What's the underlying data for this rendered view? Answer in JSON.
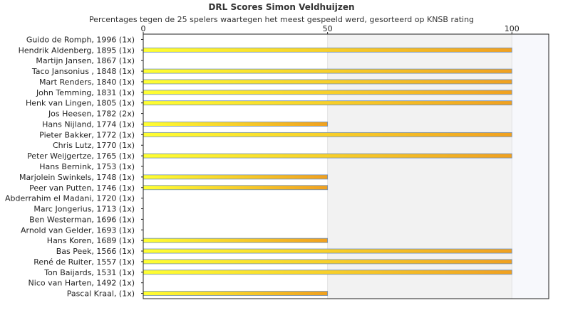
{
  "chart_data": {
    "type": "bar",
    "orientation": "horizontal",
    "title": "DRL Scores Simon Veldhuijzen",
    "subtitle": "Percentages tegen de 25 spelers waartegen het meest gespeeld werd, gesorteerd op KNSB rating",
    "xlim": [
      0,
      110
    ],
    "xticks": [
      0,
      50,
      100
    ],
    "legend": "none",
    "grid": "vertical bands at 50 and 100",
    "categories": [
      "Guido de Romph, 1996 (1x)",
      "Hendrik Aldenberg, 1895 (1x)",
      "Martijn Jansen, 1867 (1x)",
      "Taco Jansonius , 1848 (1x)",
      "Mart Renders, 1840 (1x)",
      "John Temming, 1831 (1x)",
      "Henk van Lingen, 1805 (1x)",
      "Jos Heesen, 1782 (2x)",
      "Hans Nijland, 1774 (1x)",
      "Pieter Bakker, 1772 (1x)",
      "Chris Lutz, 1770 (1x)",
      "Peter Weijgertze, 1765 (1x)",
      "Hans Bernink, 1753 (1x)",
      "Marjolein Swinkels, 1748 (1x)",
      "Peer van Putten, 1746 (1x)",
      "Abderrahim el Madani, 1720 (1x)",
      "Marc Jongerius, 1713 (1x)",
      "Ben Westerman, 1696 (1x)",
      "Arnold van Gelder, 1693 (1x)",
      "Hans Koren, 1689 (1x)",
      "Bas Peek, 1566 (1x)",
      "René de Ruiter, 1557 (1x)",
      "Ton Baijards, 1531 (1x)",
      "Nico van Harten, 1492 (1x)",
      "Pascal Kraal,  (1x)"
    ],
    "values": [
      0,
      100,
      0,
      100,
      100,
      100,
      100,
      0,
      50,
      100,
      0,
      100,
      0,
      50,
      50,
      0,
      0,
      0,
      0,
      50,
      100,
      100,
      100,
      0,
      50
    ],
    "colors": {
      "bar_start": "#ffff33",
      "bar_end": "#f0a020",
      "bar_edge": "#6a8fc0",
      "band_mid": "#f2f2f2",
      "band_high": "#f7f8fc",
      "axis": "#222222"
    }
  }
}
